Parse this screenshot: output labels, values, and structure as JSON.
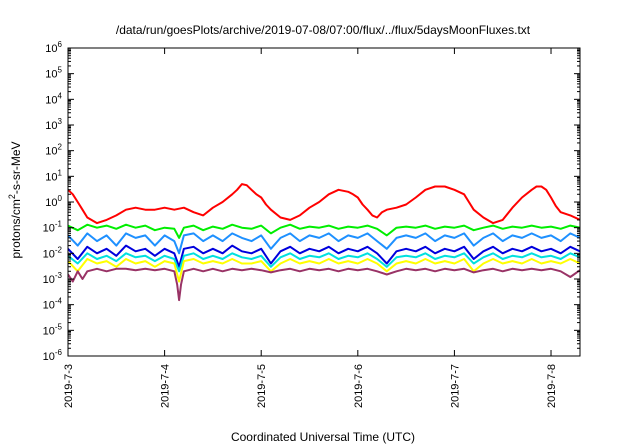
{
  "chart_data": {
    "type": "line",
    "title": "/data/run/goesPlots/archive/2019-07-08/07:00/flux/../flux/5daysMoonFluxes.txt",
    "xlabel": "Coordinated Universal Time (UTC)",
    "ylabel_base": "protons/cm",
    "ylabel_sup": "2",
    "ylabel_rest": "-s-sr-MeV",
    "y_scale": "log",
    "ylim": [
      1e-06,
      1000000.0
    ],
    "y_ticks": [
      {
        "base": "10",
        "exp": "-6",
        "value": -6
      },
      {
        "base": "10",
        "exp": "-5",
        "value": -5
      },
      {
        "base": "10",
        "exp": "-4",
        "value": -4
      },
      {
        "base": "10",
        "exp": "-3",
        "value": -3
      },
      {
        "base": "10",
        "exp": "-2",
        "value": -2
      },
      {
        "base": "10",
        "exp": "-1",
        "value": -1
      },
      {
        "base": "10",
        "exp": "0",
        "value": 0
      },
      {
        "base": "10",
        "exp": "1",
        "value": 1
      },
      {
        "base": "10",
        "exp": "2",
        "value": 2
      },
      {
        "base": "10",
        "exp": "3",
        "value": 3
      },
      {
        "base": "10",
        "exp": "4",
        "value": 4
      },
      {
        "base": "10",
        "exp": "5",
        "value": 5
      },
      {
        "base": "10",
        "exp": "6",
        "value": 6
      }
    ],
    "x_range_days": [
      0,
      5.3
    ],
    "x_ticks": [
      {
        "label": "2019-7-3",
        "day": 0
      },
      {
        "label": "2019-7-4",
        "day": 1
      },
      {
        "label": "2019-7-5",
        "day": 2
      },
      {
        "label": "2019-7-6",
        "day": 3
      },
      {
        "label": "2019-7-7",
        "day": 4
      },
      {
        "label": "2019-7-8",
        "day": 5
      }
    ],
    "grid": false,
    "series": [
      {
        "color": "#ff0000",
        "x": [
          0,
          0.05,
          0.1,
          0.15,
          0.2,
          0.3,
          0.4,
          0.5,
          0.6,
          0.7,
          0.8,
          0.9,
          1.0,
          1.1,
          1.2,
          1.3,
          1.4,
          1.5,
          1.6,
          1.7,
          1.75,
          1.8,
          1.85,
          1.9,
          1.95,
          2.0,
          2.05,
          2.1,
          2.2,
          2.3,
          2.4,
          2.5,
          2.6,
          2.7,
          2.8,
          2.9,
          2.95,
          3.0,
          3.05,
          3.1,
          3.15,
          3.2,
          3.25,
          3.3,
          3.4,
          3.5,
          3.6,
          3.7,
          3.8,
          3.9,
          4.0,
          4.1,
          4.15,
          4.2,
          4.3,
          4.4,
          4.5,
          4.6,
          4.7,
          4.8,
          4.85,
          4.9,
          4.95,
          5.0,
          5.05,
          5.1,
          5.2,
          5.3
        ],
        "y": [
          3.0,
          2.0,
          1.0,
          0.5,
          0.25,
          0.15,
          0.2,
          0.3,
          0.5,
          0.6,
          0.5,
          0.5,
          0.6,
          0.5,
          0.6,
          0.4,
          0.3,
          0.6,
          1.0,
          2.0,
          3.0,
          5.0,
          4.5,
          3.0,
          2.0,
          1.5,
          0.8,
          0.5,
          0.25,
          0.2,
          0.3,
          0.6,
          1.0,
          2.0,
          3.0,
          2.5,
          2.0,
          1.5,
          0.8,
          0.5,
          0.3,
          0.25,
          0.4,
          0.5,
          0.6,
          0.8,
          1.5,
          3.0,
          4.0,
          4.0,
          3.0,
          2.0,
          1.0,
          0.5,
          0.25,
          0.15,
          0.2,
          0.6,
          1.5,
          3.0,
          4.0,
          4.0,
          3.0,
          1.5,
          0.7,
          0.4,
          0.3,
          0.2
        ]
      },
      {
        "color": "#00ee00",
        "x": [
          0,
          0.1,
          0.2,
          0.3,
          0.4,
          0.5,
          0.6,
          0.7,
          0.8,
          0.9,
          1.0,
          1.1,
          1.15,
          1.2,
          1.3,
          1.4,
          1.5,
          1.6,
          1.7,
          1.8,
          1.9,
          2.0,
          2.1,
          2.2,
          2.3,
          2.4,
          2.5,
          2.6,
          2.7,
          2.8,
          2.9,
          3.0,
          3.1,
          3.2,
          3.3,
          3.4,
          3.5,
          3.6,
          3.7,
          3.8,
          3.9,
          4.0,
          4.1,
          4.2,
          4.3,
          4.4,
          4.5,
          4.6,
          4.7,
          4.8,
          4.9,
          5.0,
          5.1,
          5.2,
          5.3
        ],
        "y": [
          0.12,
          0.08,
          0.13,
          0.1,
          0.12,
          0.09,
          0.13,
          0.1,
          0.12,
          0.08,
          0.1,
          0.09,
          0.04,
          0.1,
          0.12,
          0.08,
          0.11,
          0.09,
          0.13,
          0.1,
          0.09,
          0.12,
          0.06,
          0.1,
          0.13,
          0.09,
          0.11,
          0.1,
          0.12,
          0.09,
          0.11,
          0.1,
          0.12,
          0.09,
          0.05,
          0.1,
          0.11,
          0.1,
          0.12,
          0.09,
          0.11,
          0.1,
          0.12,
          0.08,
          0.1,
          0.12,
          0.09,
          0.11,
          0.1,
          0.12,
          0.1,
          0.11,
          0.09,
          0.12,
          0.1
        ]
      },
      {
        "color": "#1e90ff",
        "x": [
          0,
          0.1,
          0.2,
          0.3,
          0.4,
          0.5,
          0.6,
          0.7,
          0.8,
          0.9,
          1.0,
          1.1,
          1.15,
          1.2,
          1.3,
          1.4,
          1.5,
          1.6,
          1.7,
          1.8,
          1.9,
          2.0,
          2.1,
          2.2,
          2.3,
          2.4,
          2.5,
          2.6,
          2.7,
          2.8,
          2.9,
          3.0,
          3.1,
          3.2,
          3.3,
          3.4,
          3.5,
          3.6,
          3.7,
          3.8,
          3.9,
          4.0,
          4.1,
          4.2,
          4.3,
          4.4,
          4.5,
          4.6,
          4.7,
          4.8,
          4.9,
          5.0,
          5.1,
          5.2,
          5.3
        ],
        "y": [
          0.05,
          0.02,
          0.06,
          0.03,
          0.05,
          0.02,
          0.06,
          0.04,
          0.05,
          0.02,
          0.05,
          0.03,
          0.01,
          0.05,
          0.06,
          0.03,
          0.05,
          0.03,
          0.06,
          0.04,
          0.03,
          0.05,
          0.015,
          0.04,
          0.06,
          0.03,
          0.05,
          0.04,
          0.06,
          0.03,
          0.05,
          0.04,
          0.06,
          0.03,
          0.015,
          0.04,
          0.05,
          0.04,
          0.06,
          0.03,
          0.05,
          0.04,
          0.06,
          0.02,
          0.04,
          0.06,
          0.03,
          0.05,
          0.04,
          0.06,
          0.04,
          0.05,
          0.03,
          0.06,
          0.04
        ]
      },
      {
        "color": "#0000dd",
        "x": [
          0,
          0.1,
          0.2,
          0.3,
          0.4,
          0.5,
          0.6,
          0.7,
          0.8,
          0.9,
          1.0,
          1.1,
          1.15,
          1.2,
          1.3,
          1.4,
          1.5,
          1.6,
          1.7,
          1.8,
          1.9,
          2.0,
          2.1,
          2.2,
          2.3,
          2.4,
          2.5,
          2.6,
          2.7,
          2.8,
          2.9,
          3.0,
          3.1,
          3.2,
          3.3,
          3.4,
          3.5,
          3.6,
          3.7,
          3.8,
          3.9,
          4.0,
          4.1,
          4.2,
          4.3,
          4.4,
          4.5,
          4.6,
          4.7,
          4.8,
          4.9,
          5.0,
          5.1,
          5.2,
          5.3
        ],
        "y": [
          0.015,
          0.006,
          0.018,
          0.01,
          0.015,
          0.008,
          0.02,
          0.012,
          0.015,
          0.008,
          0.015,
          0.01,
          0.003,
          0.015,
          0.018,
          0.01,
          0.015,
          0.01,
          0.02,
          0.012,
          0.01,
          0.015,
          0.004,
          0.012,
          0.018,
          0.01,
          0.015,
          0.012,
          0.018,
          0.01,
          0.015,
          0.012,
          0.018,
          0.01,
          0.004,
          0.012,
          0.015,
          0.012,
          0.018,
          0.01,
          0.015,
          0.012,
          0.018,
          0.006,
          0.012,
          0.018,
          0.01,
          0.015,
          0.012,
          0.018,
          0.012,
          0.015,
          0.01,
          0.018,
          0.012
        ]
      },
      {
        "color": "#00e0e0",
        "x": [
          0,
          0.1,
          0.2,
          0.3,
          0.4,
          0.5,
          0.6,
          0.7,
          0.8,
          0.9,
          1.0,
          1.1,
          1.15,
          1.2,
          1.3,
          1.4,
          1.5,
          1.6,
          1.7,
          1.8,
          1.9,
          2.0,
          2.1,
          2.2,
          2.3,
          2.4,
          2.5,
          2.6,
          2.7,
          2.8,
          2.9,
          3.0,
          3.1,
          3.2,
          3.3,
          3.4,
          3.5,
          3.6,
          3.7,
          3.8,
          3.9,
          4.0,
          4.1,
          4.2,
          4.3,
          4.4,
          4.5,
          4.6,
          4.7,
          4.8,
          4.9,
          5.0,
          5.1,
          5.2,
          5.3
        ],
        "y": [
          0.008,
          0.004,
          0.01,
          0.006,
          0.008,
          0.005,
          0.01,
          0.007,
          0.008,
          0.005,
          0.008,
          0.006,
          0.002,
          0.008,
          0.01,
          0.006,
          0.008,
          0.006,
          0.01,
          0.007,
          0.006,
          0.008,
          0.003,
          0.007,
          0.01,
          0.006,
          0.008,
          0.007,
          0.01,
          0.006,
          0.008,
          0.007,
          0.01,
          0.006,
          0.003,
          0.007,
          0.008,
          0.007,
          0.01,
          0.006,
          0.008,
          0.007,
          0.01,
          0.004,
          0.007,
          0.01,
          0.006,
          0.008,
          0.007,
          0.01,
          0.007,
          0.008,
          0.006,
          0.01,
          0.007
        ]
      },
      {
        "color": "#ffff00",
        "x": [
          0,
          0.1,
          0.2,
          0.3,
          0.4,
          0.5,
          0.6,
          0.7,
          0.8,
          0.9,
          1.0,
          1.1,
          1.15,
          1.2,
          1.3,
          1.4,
          1.5,
          1.6,
          1.7,
          1.8,
          1.9,
          2.0,
          2.1,
          2.2,
          2.3,
          2.4,
          2.5,
          2.6,
          2.7,
          2.8,
          2.9,
          3.0,
          3.1,
          3.2,
          3.3,
          3.4,
          3.5,
          3.6,
          3.7,
          3.8,
          3.9,
          4.0,
          4.1,
          4.2,
          4.3,
          4.4,
          4.5,
          4.6,
          4.7,
          4.8,
          4.9,
          5.0,
          5.1,
          5.2,
          5.3
        ],
        "y": [
          0.005,
          0.002,
          0.006,
          0.004,
          0.005,
          0.003,
          0.006,
          0.004,
          0.005,
          0.003,
          0.005,
          0.004,
          0.0008,
          0.005,
          0.006,
          0.004,
          0.005,
          0.004,
          0.006,
          0.004,
          0.004,
          0.005,
          0.002,
          0.004,
          0.006,
          0.004,
          0.005,
          0.004,
          0.006,
          0.004,
          0.005,
          0.004,
          0.006,
          0.004,
          0.002,
          0.004,
          0.005,
          0.004,
          0.006,
          0.004,
          0.005,
          0.004,
          0.006,
          0.002,
          0.004,
          0.006,
          0.004,
          0.005,
          0.004,
          0.006,
          0.004,
          0.005,
          0.004,
          0.006,
          0.004
        ]
      },
      {
        "color": "#993366",
        "x": [
          0,
          0.05,
          0.1,
          0.15,
          0.2,
          0.3,
          0.4,
          0.5,
          0.6,
          0.7,
          0.8,
          0.9,
          1.0,
          1.1,
          1.13,
          1.15,
          1.17,
          1.2,
          1.3,
          1.4,
          1.5,
          1.6,
          1.7,
          1.8,
          1.9,
          2.0,
          2.1,
          2.2,
          2.3,
          2.4,
          2.5,
          2.6,
          2.7,
          2.8,
          2.9,
          3.0,
          3.1,
          3.2,
          3.3,
          3.4,
          3.5,
          3.6,
          3.7,
          3.8,
          3.9,
          4.0,
          4.1,
          4.2,
          4.3,
          4.4,
          4.5,
          4.6,
          4.7,
          4.8,
          4.9,
          5.0,
          5.1,
          5.2,
          5.3
        ],
        "y": [
          0.0015,
          0.0008,
          0.002,
          0.001,
          0.002,
          0.0025,
          0.002,
          0.0025,
          0.0025,
          0.0022,
          0.0025,
          0.0022,
          0.0025,
          0.002,
          0.0006,
          0.00015,
          0.0006,
          0.002,
          0.0025,
          0.002,
          0.0025,
          0.002,
          0.0025,
          0.0022,
          0.0025,
          0.0022,
          0.0018,
          0.0022,
          0.0025,
          0.002,
          0.0025,
          0.0022,
          0.0025,
          0.002,
          0.0025,
          0.0022,
          0.0025,
          0.002,
          0.0015,
          0.002,
          0.0025,
          0.0022,
          0.0025,
          0.002,
          0.0025,
          0.0022,
          0.0025,
          0.0018,
          0.0022,
          0.0025,
          0.002,
          0.0025,
          0.0022,
          0.0025,
          0.0022,
          0.0025,
          0.002,
          0.0012,
          0.0022
        ]
      }
    ]
  }
}
